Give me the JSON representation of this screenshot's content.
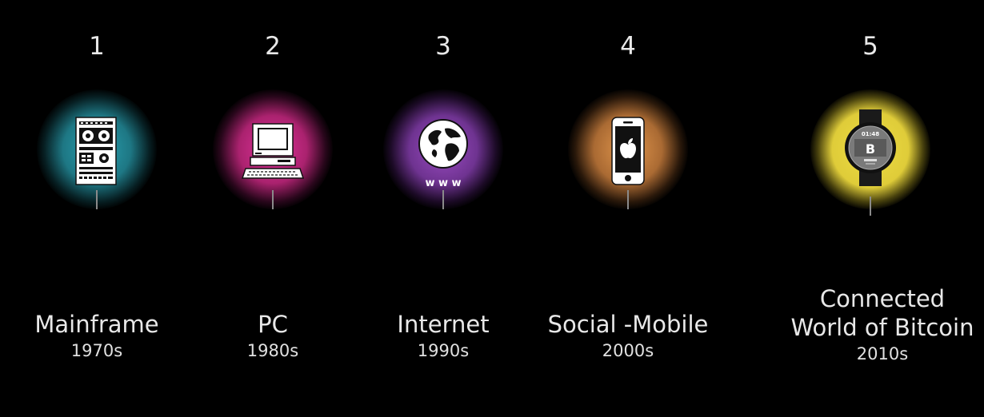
{
  "eras": [
    {
      "number": "1",
      "title": "Mainframe",
      "decade": "1970s",
      "icon": "mainframe-icon",
      "glow_color": "#2aa3b3"
    },
    {
      "number": "2",
      "title": "PC",
      "decade": "1980s",
      "icon": "computer-icon",
      "glow_color": "#d02c8c"
    },
    {
      "number": "3",
      "title": "Internet",
      "decade": "1990s",
      "icon": "globe-www-icon",
      "icon_text": "w w w",
      "glow_color": "#8a3fb0"
    },
    {
      "number": "4",
      "title": "Social -Mobile",
      "decade": "2000s",
      "icon": "smartphone-icon",
      "glow_color": "#d48a45"
    },
    {
      "number": "5",
      "title_line1": "Connected",
      "title_line2": "World of Bitcoin",
      "decade": "2010s",
      "icon": "smartwatch-bitcoin-icon",
      "watch_time": "01:48",
      "watch_symbol": "B",
      "glow_color": "#e8d43a"
    }
  ]
}
